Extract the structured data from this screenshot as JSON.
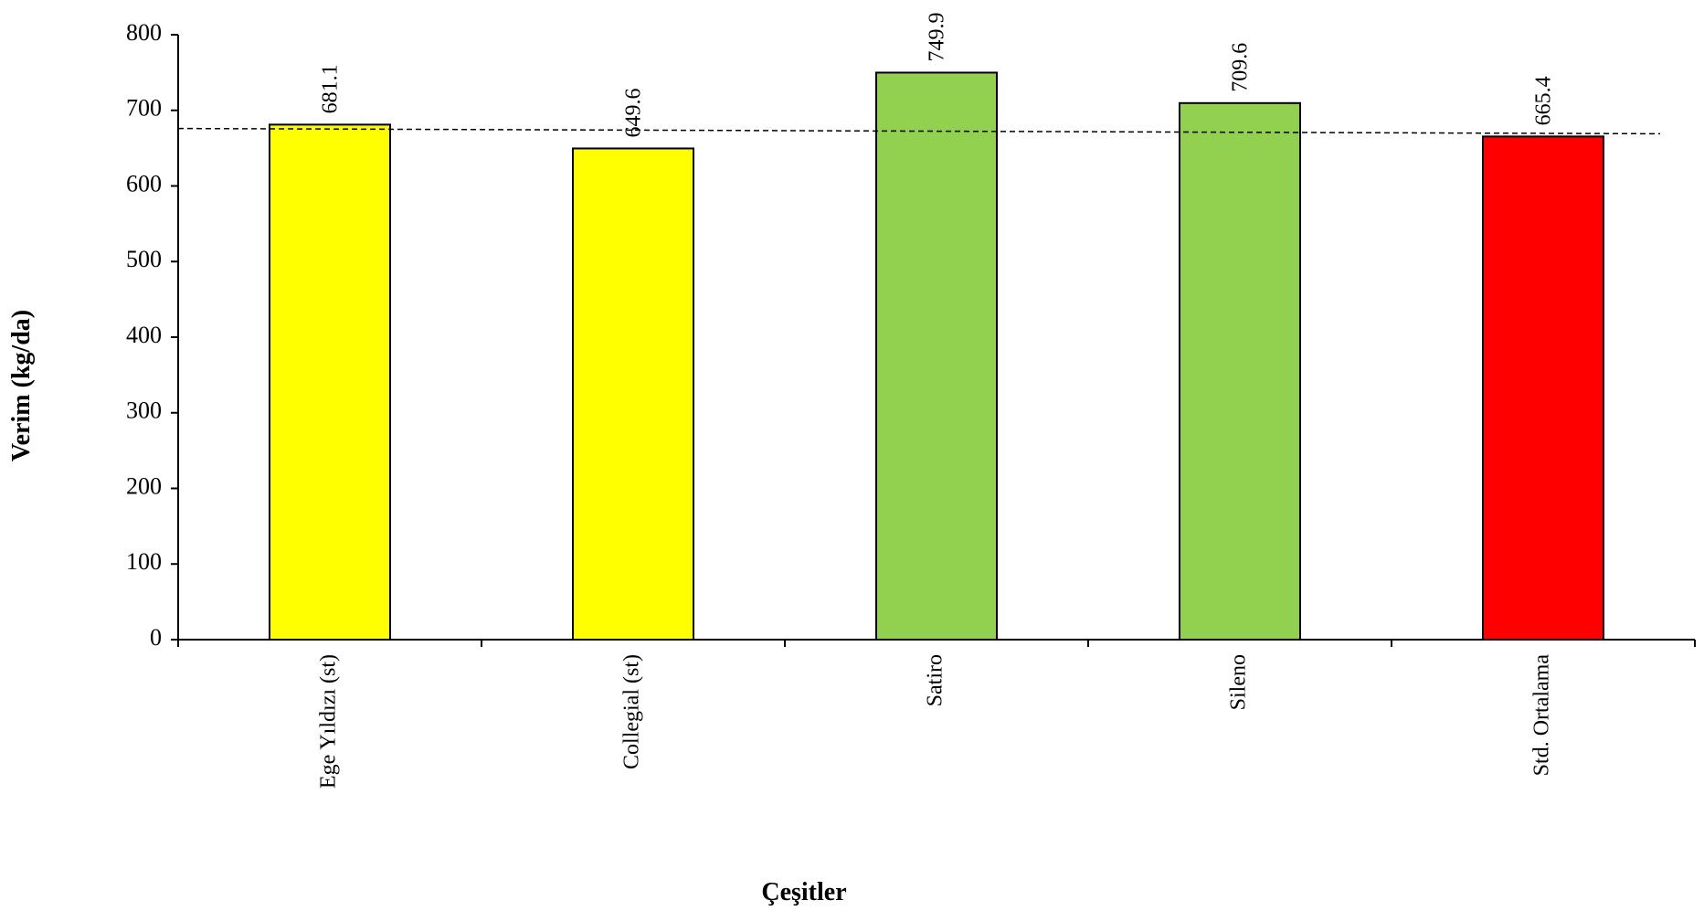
{
  "chart_data": {
    "type": "bar",
    "title": "",
    "xlabel": "Çeşitler",
    "ylabel": "Verim (kg/da)",
    "categories": [
      "Ege Yıldızı (st)",
      "Collegial (st)",
      "Satiro",
      "Sileno",
      "Std. Ortalama"
    ],
    "values": [
      681.1,
      649.6,
      749.9,
      709.6,
      665.4
    ],
    "value_labels": [
      "681.1",
      "649.6",
      "749.9",
      "709.6",
      "665.4"
    ],
    "bar_colors": [
      "#ffff00",
      "#ffff00",
      "#92d050",
      "#92d050",
      "#ff0000"
    ],
    "ylim": [
      0,
      800
    ],
    "yticks": [
      0,
      100,
      200,
      300,
      400,
      500,
      600,
      700,
      800
    ],
    "reference_line": {
      "start_value": 676,
      "end_value": 669,
      "style": "dashed"
    },
    "grid": false,
    "legend": "none"
  }
}
